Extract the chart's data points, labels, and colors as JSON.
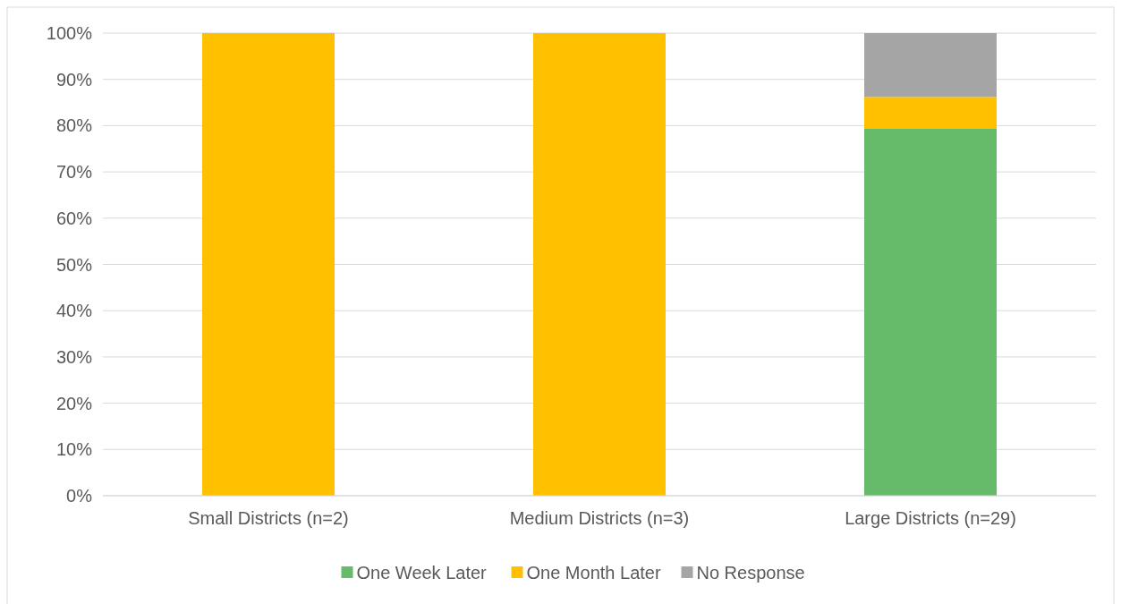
{
  "chart_data": {
    "type": "bar",
    "stacked": true,
    "categories": [
      "Small Districts (n=2)",
      "Medium Districts (n=3)",
      "Large Districts (n=29)"
    ],
    "series": [
      {
        "name": "One Week Later",
        "color": "#66bb6a",
        "values": [
          0,
          0,
          79.3
        ]
      },
      {
        "name": "One Month Later",
        "color": "#ffc000",
        "values": [
          100,
          100,
          6.9
        ]
      },
      {
        "name": "No Response",
        "color": "#a5a5a5",
        "values": [
          0,
          0,
          13.8
        ]
      }
    ],
    "ylim": [
      0,
      100
    ],
    "yticks": [
      {
        "value": 0,
        "label": "0%"
      },
      {
        "value": 10,
        "label": "10%"
      },
      {
        "value": 20,
        "label": "20%"
      },
      {
        "value": 30,
        "label": "30%"
      },
      {
        "value": 40,
        "label": "40%"
      },
      {
        "value": 50,
        "label": "50%"
      },
      {
        "value": 60,
        "label": "60%"
      },
      {
        "value": 70,
        "label": "70%"
      },
      {
        "value": 80,
        "label": "80%"
      },
      {
        "value": 90,
        "label": "90%"
      },
      {
        "value": 100,
        "label": "100%"
      }
    ],
    "grid": "y",
    "legend": "bottom"
  }
}
